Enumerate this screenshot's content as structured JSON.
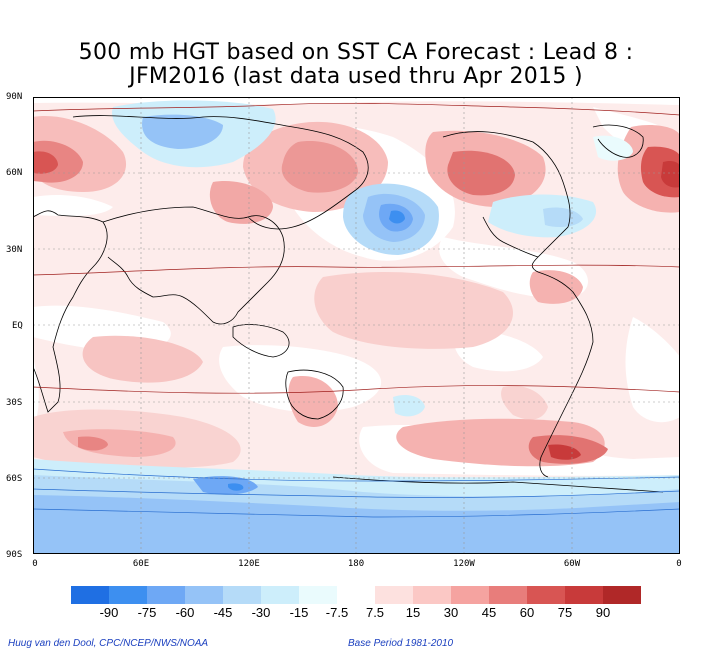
{
  "title": {
    "line1": "500 mb HGT based on SST CA Forecast : Lead 8 :",
    "line2": "JFM2016 (last data used thru Apr 2015 )"
  },
  "axes": {
    "y_ticks": [
      "90N",
      "60N",
      "30N",
      "EQ",
      "30S",
      "60S",
      "90S"
    ],
    "x_ticks": [
      "0",
      "60E",
      "120E",
      "180",
      "120W",
      "60W",
      "0"
    ]
  },
  "colorbar": {
    "labels": [
      "-90",
      "-75",
      "-60",
      "-45",
      "-30",
      "-15",
      "-7.5",
      "7.5",
      "15",
      "30",
      "45",
      "60",
      "75",
      "90"
    ],
    "colors": [
      "#1f6fe3",
      "#3d8ff0",
      "#6ea8f5",
      "#95c3f7",
      "#b5dbf8",
      "#cdeefb",
      "#eafbfd",
      "#ffffff",
      "#fde1df",
      "#fbc8c5",
      "#f5a3a0",
      "#e87d7b",
      "#d85553",
      "#c83a3a",
      "#b02828"
    ]
  },
  "credits": {
    "left": "Huug van den Dool, CPC/NCEP/NWS/NOAA",
    "right": "Base Period 1981-2010"
  },
  "map_colors": {
    "ocean_bg": "#fde8e6",
    "land_line": "#000000",
    "contour": "#a0201e",
    "neg_contour": "#2a6fd0",
    "grid": "#999999"
  }
}
